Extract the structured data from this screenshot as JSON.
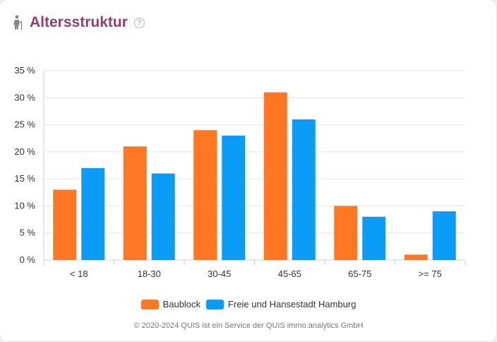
{
  "header": {
    "title": "Altersstruktur",
    "icon": "person-walking-icon",
    "help_icon": "help-circle-icon",
    "help_glyph": "?"
  },
  "colors": {
    "title": "#8e3f74",
    "baublock": "#ff7722",
    "hamburg": "#0a9cf7"
  },
  "chart_data": {
    "type": "bar",
    "categories": [
      "< 18",
      "18-30",
      "30-45",
      "45-65",
      "65-75",
      ">= 75"
    ],
    "series": [
      {
        "name": "Baublock",
        "values": [
          13,
          21,
          24,
          31,
          10,
          1
        ]
      },
      {
        "name": "Freie und Hansestadt Hamburg",
        "values": [
          17,
          16,
          23,
          26,
          8,
          9
        ]
      }
    ],
    "yticks": [
      "0 %",
      "5 %",
      "10 %",
      "15 %",
      "20 %",
      "25 %",
      "30 %",
      "35 %"
    ],
    "ylim": [
      0,
      35
    ],
    "grid": true,
    "legend_position": "bottom"
  },
  "legend": {
    "baublock": "Baublock",
    "hamburg": "Freie und Hansestadt Hamburg"
  },
  "footer": "© 2020-2024 QUIS ist ein Service der QUIS immo.analytics GmbH"
}
